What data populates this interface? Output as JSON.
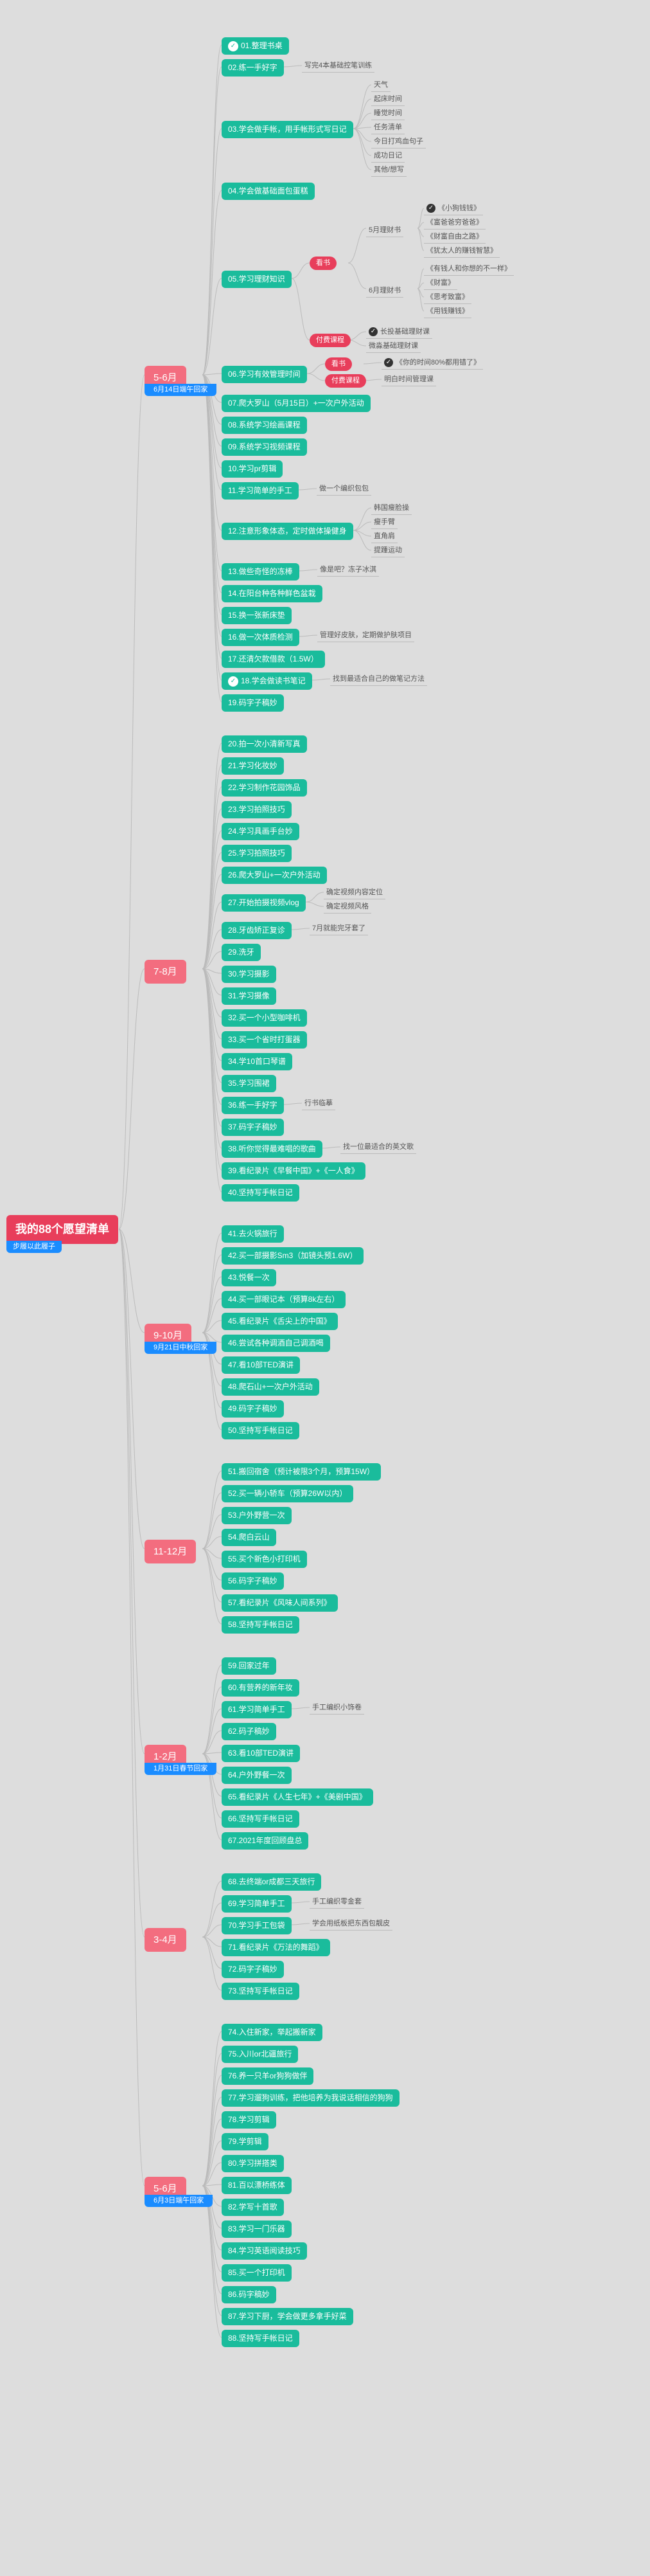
{
  "colors": {
    "bg": "#dddddd",
    "root": "#e83e5b",
    "blue": "#1a8cff",
    "month": "#f36d7f",
    "item": "#1abc9c",
    "pill": "#e83e5b",
    "line": "#bbbbbb",
    "leaf_text": "#555555"
  },
  "root": {
    "title": "我的88个愿望清单",
    "subtitle": "步履以此履子"
  },
  "months": [
    {
      "id": "m1",
      "label": "5-6月",
      "sub": "6月14日端午回家",
      "items": [
        {
          "id": "i1",
          "label": "01.整理书桌",
          "checked": true
        },
        {
          "id": "i2",
          "label": "02.练一手好字",
          "leaves": [
            {
              "t": "写完4本基础控笔训练"
            }
          ]
        },
        {
          "id": "i3",
          "label": "03.学会做手帐，用手帐形式写日记",
          "leaves": [
            {
              "t": "天气"
            },
            {
              "t": "起床时间"
            },
            {
              "t": "睡觉时间"
            },
            {
              "t": "任务清单"
            },
            {
              "t": "今日打鸡血句子"
            },
            {
              "t": "成功日记"
            },
            {
              "t": "其他/想写"
            }
          ]
        },
        {
          "id": "i4",
          "label": "04.学会做基础面包蛋糕"
        },
        {
          "id": "i5",
          "label": "05.学习理财知识",
          "branches": [
            {
              "type": "pill",
              "label": "看书",
              "sub": [
                {
                  "t": "5月理财书",
                  "leaves": [
                    {
                      "t": "《小狗钱钱》",
                      "checked": true
                    },
                    {
                      "t": "《富爸爸穷爸爸》"
                    },
                    {
                      "t": "《财富自由之路》"
                    },
                    {
                      "t": "《犹太人的赚钱智慧》"
                    }
                  ]
                },
                {
                  "t": "6月理财书",
                  "leaves": [
                    {
                      "t": "《有钱人和你想的不一样》"
                    },
                    {
                      "t": "《财富》"
                    },
                    {
                      "t": "《思考致富》"
                    },
                    {
                      "t": "《用钱赚钱》"
                    }
                  ]
                }
              ]
            },
            {
              "type": "pill",
              "label": "付费课程",
              "leaves": [
                {
                  "t": "长投基础理财课",
                  "checked": true
                },
                {
                  "t": "微淼基础理财课"
                }
              ]
            }
          ]
        },
        {
          "id": "i6",
          "label": "06.学习有效管理时间",
          "branches": [
            {
              "type": "pill",
              "label": "看书",
              "leaves": [
                {
                  "t": "《你的时间80%都用错了》",
                  "checked": true
                }
              ]
            },
            {
              "type": "pill",
              "label": "付费课程",
              "leaves": [
                {
                  "t": "明白时间管理课"
                }
              ]
            }
          ]
        },
        {
          "id": "i7",
          "label": "07.爬大罗山（5月15日）+一次户外活动"
        },
        {
          "id": "i8",
          "label": "08.系统学习绘画课程"
        },
        {
          "id": "i9",
          "label": "09.系统学习视频课程"
        },
        {
          "id": "i10",
          "label": "10.学习pr剪辑"
        },
        {
          "id": "i11",
          "label": "11.学习简单的手工",
          "leaves": [
            {
              "t": "做一个编织包包"
            }
          ]
        },
        {
          "id": "i12",
          "label": "12.注意形象体态，定时做体操健身",
          "leaves": [
            {
              "t": "韩国瘦脸操"
            },
            {
              "t": "瘦手臂"
            },
            {
              "t": "直角肩"
            },
            {
              "t": "提踵运动"
            }
          ]
        },
        {
          "id": "i13",
          "label": "13.做些奇怪的冻棒",
          "leaves": [
            {
              "t": "像是吧？冻子冰淇"
            }
          ]
        },
        {
          "id": "i14",
          "label": "14.在阳台种各种鲜色盆栽"
        },
        {
          "id": "i15",
          "label": "15.换一张新床垫"
        },
        {
          "id": "i16",
          "label": "16.做一次体质检测",
          "leaves": [
            {
              "t": "管理好皮肤，定期做护肤项目"
            }
          ]
        },
        {
          "id": "i17",
          "label": "17.还清欠款借款（1.5W）"
        },
        {
          "id": "i18",
          "label": "18.学会做读书笔记",
          "checked": true,
          "leaves": [
            {
              "t": "找到最适合自己的做笔记方法"
            }
          ]
        },
        {
          "id": "i19",
          "label": "19.码字子稿妙"
        }
      ]
    },
    {
      "id": "m2",
      "label": "7-8月",
      "items": [
        {
          "id": "i20",
          "label": "20.拍一次小清新写真"
        },
        {
          "id": "i21",
          "label": "21.学习化妆妙"
        },
        {
          "id": "i22",
          "label": "22.学习制作花园饰品"
        },
        {
          "id": "i23",
          "label": "23.学习拍照技巧"
        },
        {
          "id": "i24",
          "label": "24.学习具画手台妙"
        },
        {
          "id": "i25",
          "label": "25.学习拍照技巧"
        },
        {
          "id": "i26",
          "label": "26.爬大罗山+一次户外活动"
        },
        {
          "id": "i27",
          "label": "27.开始拍摄视频vlog",
          "branches": [
            {
              "leaves": [
                {
                  "t": "确定视频内容定位"
                },
                {
                  "t": "确定视频风格"
                }
              ]
            }
          ]
        },
        {
          "id": "i28",
          "label": "28.牙齿矫正复诊",
          "leaves": [
            {
              "t": "7月就能完牙套了"
            }
          ]
        },
        {
          "id": "i29",
          "label": "29.洗牙"
        },
        {
          "id": "i30",
          "label": "30.学习摄影"
        },
        {
          "id": "i31",
          "label": "31.学习摄像"
        },
        {
          "id": "i32",
          "label": "32.买一个小型咖啡机"
        },
        {
          "id": "i33",
          "label": "33.买一个省时打蛋器"
        },
        {
          "id": "i34",
          "label": "34.学10首口琴谱"
        },
        {
          "id": "i35",
          "label": "35.学习围裙"
        },
        {
          "id": "i36",
          "label": "36.练一手好字",
          "leaves": [
            {
              "t": "行书临摹"
            }
          ]
        },
        {
          "id": "i37",
          "label": "37.码字子稿妙"
        },
        {
          "id": "i38",
          "label": "38.听你觉得最难唱的歌曲",
          "leaves": [
            {
              "t": "找一位最适合的英文歌"
            }
          ]
        },
        {
          "id": "i39",
          "label": "39.看纪录片《早餐中国》+《一人食》"
        },
        {
          "id": "i40",
          "label": "40.坚持写手帐日记"
        }
      ]
    },
    {
      "id": "m3",
      "label": "9-10月",
      "sub": "9月21日中秋回家",
      "items": [
        {
          "id": "i41",
          "label": "41.去火锅旅行"
        },
        {
          "id": "i42",
          "label": "42.买一部摄影Sm3（加镜头预1.6W）"
        },
        {
          "id": "i43",
          "label": "43.悦餐一次"
        },
        {
          "id": "i44",
          "label": "44.买一部眼记本（预算8k左右）"
        },
        {
          "id": "i45",
          "label": "45.看纪录片《舌尖上的中国》"
        },
        {
          "id": "i46",
          "label": "46.尝试各种调酒自己调酒喝"
        },
        {
          "id": "i47",
          "label": "47.看10部TED演讲"
        },
        {
          "id": "i48",
          "label": "48.爬石山+一次户外活动"
        },
        {
          "id": "i49",
          "label": "49.码字子稿妙"
        },
        {
          "id": "i50",
          "label": "50.坚持写手帐日记"
        }
      ]
    },
    {
      "id": "m4",
      "label": "11-12月",
      "items": [
        {
          "id": "i51",
          "label": "51.搬回宿舍（预计被限3个月，预算15W）"
        },
        {
          "id": "i52",
          "label": "52.买一辆小轿车（预算26W以内）"
        },
        {
          "id": "i53",
          "label": "53.户外野营一次"
        },
        {
          "id": "i54",
          "label": "54.爬白云山"
        },
        {
          "id": "i55",
          "label": "55.买个新色小打印机"
        },
        {
          "id": "i56",
          "label": "56.码字子稿妙"
        },
        {
          "id": "i57",
          "label": "57.看纪录片《风味人间系列》"
        },
        {
          "id": "i58",
          "label": "58.坚持写手帐日记"
        }
      ]
    },
    {
      "id": "m5",
      "label": "1-2月",
      "sub": "1月31日春节回家",
      "items": [
        {
          "id": "i59",
          "label": "59.回家过年"
        },
        {
          "id": "i60",
          "label": "60.有营养的新年妆"
        },
        {
          "id": "i61",
          "label": "61.学习简单手工",
          "leaves": [
            {
              "t": "手工编织小饰卷"
            }
          ]
        },
        {
          "id": "i62",
          "label": "62.码子稿妙"
        },
        {
          "id": "i63",
          "label": "63.看10部TED演讲"
        },
        {
          "id": "i64",
          "label": "64.户外野餐一次"
        },
        {
          "id": "i65",
          "label": "65.看纪录片《人生七年》+《美剧中国》"
        },
        {
          "id": "i66",
          "label": "66.坚持写手帐日记"
        },
        {
          "id": "i67",
          "label": "67.2021年度回顾盘总"
        }
      ]
    },
    {
      "id": "m6",
      "label": "3-4月",
      "items": [
        {
          "id": "i68",
          "label": "68.去终端or成都三天旅行"
        },
        {
          "id": "i69",
          "label": "69.学习简单手工",
          "leaves": [
            {
              "t": "手工编织零金套"
            }
          ]
        },
        {
          "id": "i70",
          "label": "70.学习手工包袋",
          "leaves": [
            {
              "t": "学会用纸板把东西包靓皮"
            }
          ]
        },
        {
          "id": "i71",
          "label": "71.看纪录片《万法的舞蹈》"
        },
        {
          "id": "i72",
          "label": "72.码字子稿妙"
        },
        {
          "id": "i73",
          "label": "73.坚持写手帐日记"
        }
      ]
    },
    {
      "id": "m7",
      "label": "5-6月",
      "sub": "6月3日端午回家",
      "items": [
        {
          "id": "i74",
          "label": "74.入住新家，举起搬新家"
        },
        {
          "id": "i75",
          "label": "75.入川or北疆旅行"
        },
        {
          "id": "i76",
          "label": "76.养一只羊or狗狗做伴"
        },
        {
          "id": "i77",
          "label": "77.学习遛狗训练，把他培养为我说话相信的狗狗"
        },
        {
          "id": "i78",
          "label": "78.学习剪辑"
        },
        {
          "id": "i79",
          "label": "79.学剪辑"
        },
        {
          "id": "i80",
          "label": "80.学习拼搭类"
        },
        {
          "id": "i81",
          "label": "81.百以漂桥练体"
        },
        {
          "id": "i82",
          "label": "82.学写十首歌"
        },
        {
          "id": "i83",
          "label": "83.学习一门乐器"
        },
        {
          "id": "i84",
          "label": "84.学习英语阅读技巧"
        },
        {
          "id": "i85",
          "label": "85.买一个打印机"
        },
        {
          "id": "i86",
          "label": "86.码字稿妙"
        },
        {
          "id": "i87",
          "label": "87.学习下厨，学会做更多拿手好菜"
        },
        {
          "id": "i88",
          "label": "88.坚持写手帐日记"
        }
      ]
    }
  ]
}
